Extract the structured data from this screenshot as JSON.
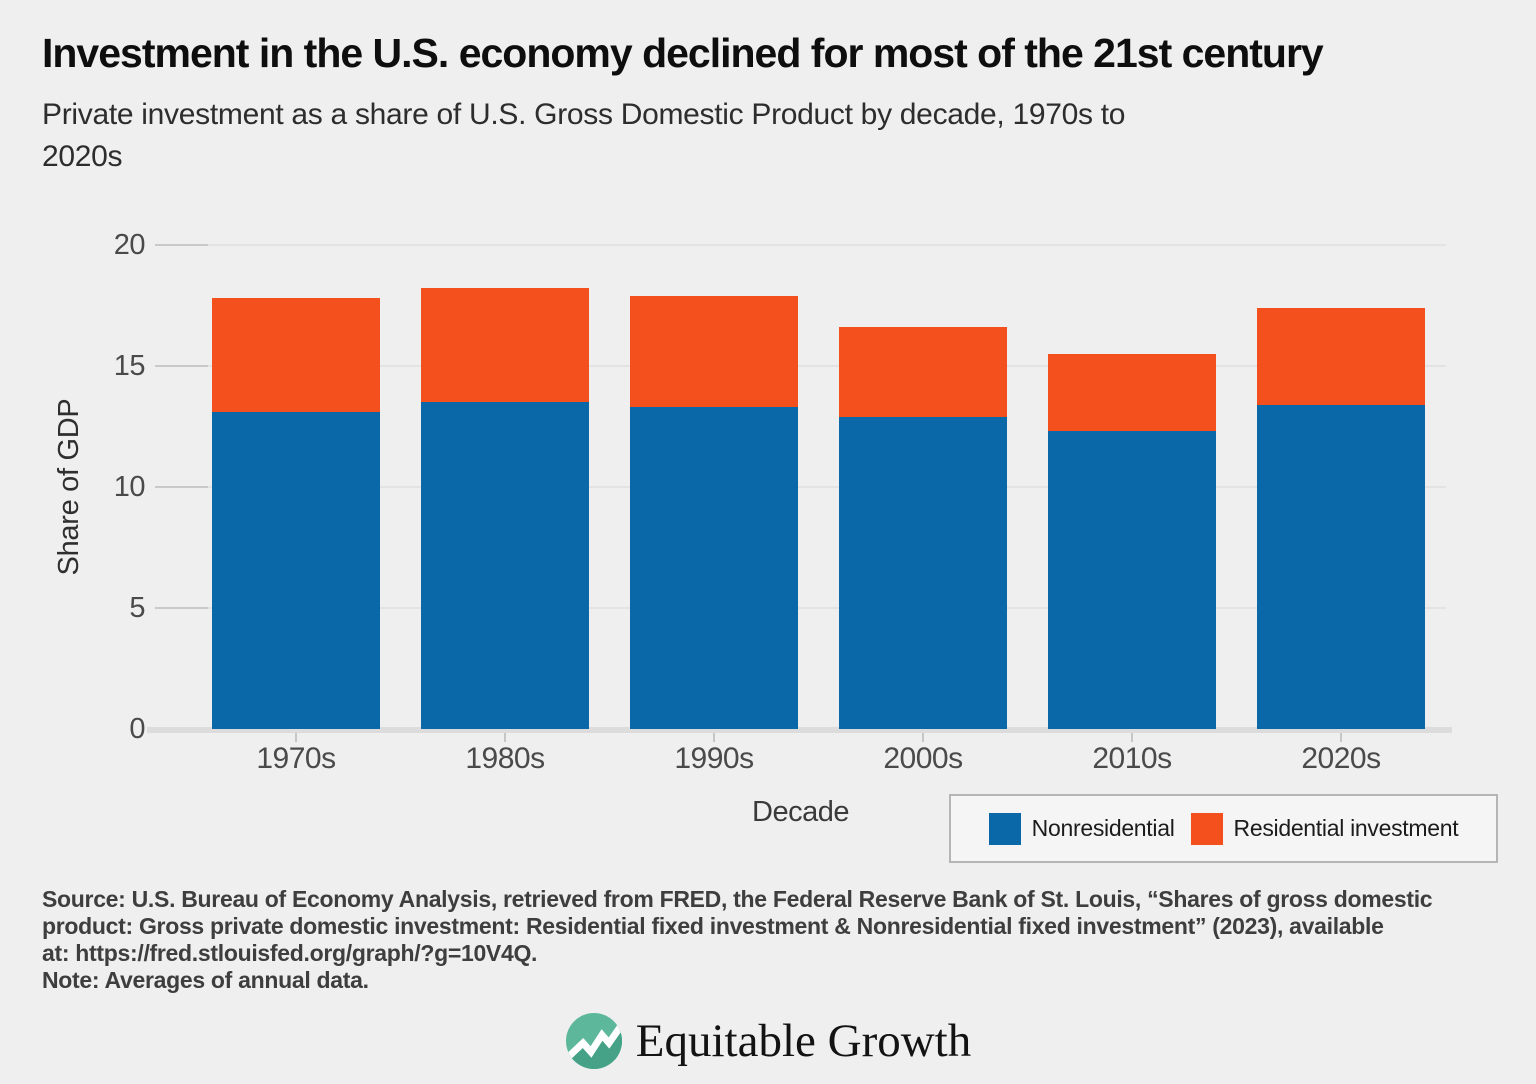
{
  "header": {
    "title": "Investment in the U.S. economy declined for most of the 21st century",
    "subtitle_lines": [
      "Private investment as a share of U.S. Gross Domestic Product by decade, 1970s to",
      "2020s"
    ]
  },
  "chart_data": {
    "type": "bar",
    "stacked": true,
    "title": "Investment in the U.S. economy declined for most of the 21st century",
    "subtitle": "Private investment as a share of U.S. Gross Domestic Product by decade, 1970s to 2020s",
    "categories": [
      "1970s",
      "1980s",
      "1990s",
      "2000s",
      "2010s",
      "2020s"
    ],
    "series": [
      {
        "name": "Nonresidential",
        "color": "#0a68a8",
        "values": [
          13.1,
          13.5,
          13.3,
          12.9,
          12.3,
          13.4
        ]
      },
      {
        "name": "Residential investment",
        "color": "#f4501d",
        "values": [
          4.7,
          4.7,
          4.6,
          3.7,
          3.2,
          4.0
        ]
      }
    ],
    "totals": [
      17.8,
      18.2,
      17.9,
      16.6,
      15.5,
      17.4
    ],
    "xlabel": "Decade",
    "ylabel": "Share of GDP",
    "ylim": [
      0,
      20
    ],
    "yticks": [
      0,
      5,
      10,
      15,
      20
    ],
    "grid": true,
    "legend_position": "bottom-right"
  },
  "footer": {
    "source_lines": [
      "Source: U.S. Bureau of Economy Analysis, retrieved from FRED, the Federal Reserve Bank of St. Louis, “Shares of gross domestic",
      "product: Gross private domestic investment: Residential fixed investment & Nonresidential fixed investment” (2023), available",
      "at: https://fred.stlouisfed.org/graph/?g=10V4Q."
    ],
    "note": "Note: Averages of annual data."
  },
  "logo": {
    "text": "Equitable Growth",
    "icon": "area-line-chart-icon",
    "icon_colors": {
      "circle": "#5cb79b",
      "area_dark": "#45a287",
      "line": "#ffffff"
    }
  }
}
